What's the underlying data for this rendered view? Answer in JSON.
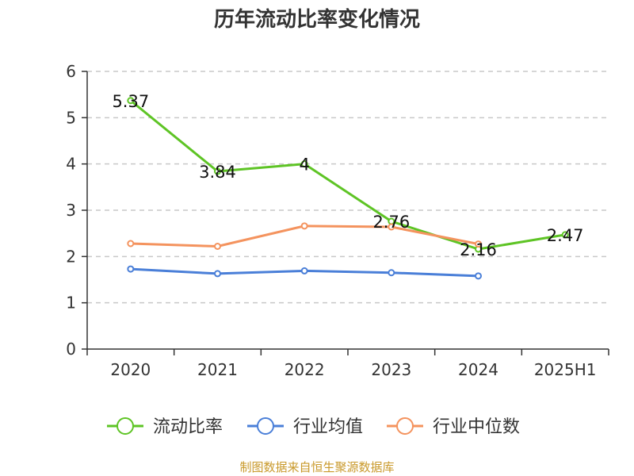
{
  "title": "历年流动比率变化情况",
  "source": "制图数据来自恒生聚源数据库",
  "chart_data": {
    "type": "line",
    "title": "历年流动比率变化情况",
    "categories": [
      "2020",
      "2021",
      "2022",
      "2023",
      "2024",
      "2025H1"
    ],
    "ylim": [
      0,
      6
    ],
    "yticks": [
      0,
      1,
      2,
      3,
      4,
      5,
      6
    ],
    "grid": true,
    "legend_position": "bottom",
    "series": [
      {
        "name": "流动比率",
        "color": "#5ec425",
        "values": [
          5.37,
          3.84,
          4,
          2.76,
          2.16,
          2.47
        ],
        "labels": [
          "5.37",
          "3.84",
          "4",
          "2.76",
          "2.16",
          "2.47"
        ]
      },
      {
        "name": "行业均值",
        "color": "#4a7fd8",
        "values": [
          1.73,
          1.63,
          1.69,
          1.65,
          1.58,
          null
        ]
      },
      {
        "name": "行业中位数",
        "color": "#f4935e",
        "values": [
          2.28,
          2.22,
          2.66,
          2.64,
          2.27,
          null
        ]
      }
    ]
  }
}
